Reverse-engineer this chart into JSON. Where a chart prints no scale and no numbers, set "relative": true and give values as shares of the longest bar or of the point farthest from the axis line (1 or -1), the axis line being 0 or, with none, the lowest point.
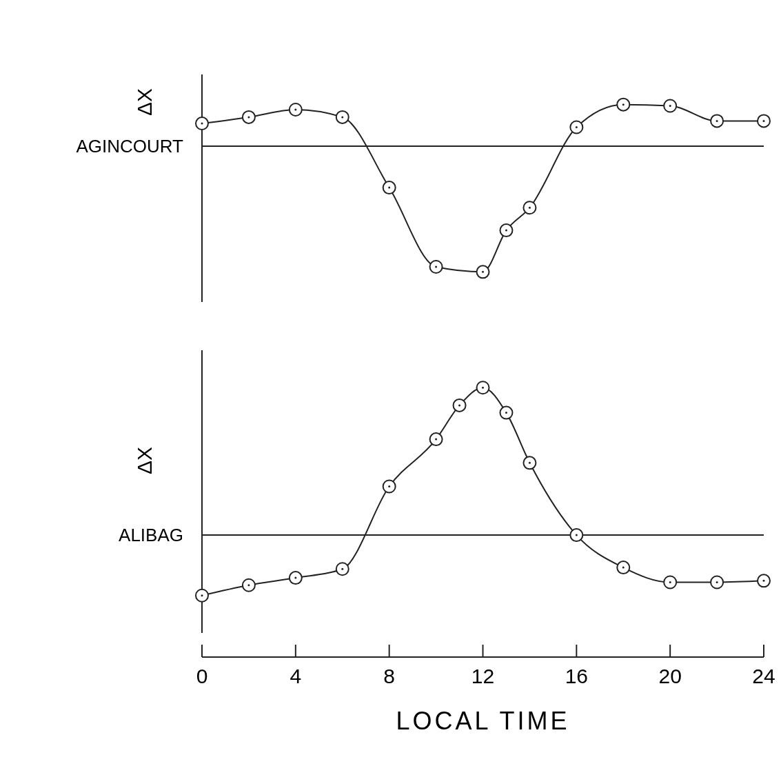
{
  "chart_data": [
    {
      "type": "line",
      "ylabel": "ΔX",
      "annotations": [
        "AGINCOURT"
      ],
      "relative": true,
      "marker": "circle",
      "xlim": [
        0,
        24
      ],
      "tick_labels": false,
      "x": [
        0,
        2,
        4,
        6,
        8,
        10,
        12,
        13,
        14,
        16,
        18,
        20,
        22,
        24
      ],
      "series": [
        {
          "color": "#222222",
          "values": [
            0.18,
            0.23,
            0.29,
            0.23,
            -0.33,
            -0.96,
            -1,
            -0.67,
            -0.49,
            0.15,
            0.33,
            0.32,
            0.2,
            0.2
          ]
        }
      ]
    },
    {
      "type": "line",
      "ylabel": "ΔX",
      "annotations": [
        "ALIBAG"
      ],
      "relative": true,
      "marker": "circle",
      "xlim": [
        0,
        24
      ],
      "xticks": [
        0,
        4,
        8,
        12,
        16,
        20,
        24
      ],
      "xlabel": "LOCAL TIME",
      "tick_labels": "x",
      "x": [
        0,
        2,
        4,
        6,
        8,
        10,
        11,
        12,
        13,
        14,
        16,
        18,
        20,
        22,
        24
      ],
      "series": [
        {
          "color": "#222222",
          "values": [
            -0.41,
            -0.34,
            -0.29,
            -0.23,
            0.33,
            0.65,
            0.88,
            1,
            0.83,
            0.49,
            0,
            -0.22,
            -0.32,
            -0.32,
            -0.31
          ]
        }
      ]
    }
  ]
}
